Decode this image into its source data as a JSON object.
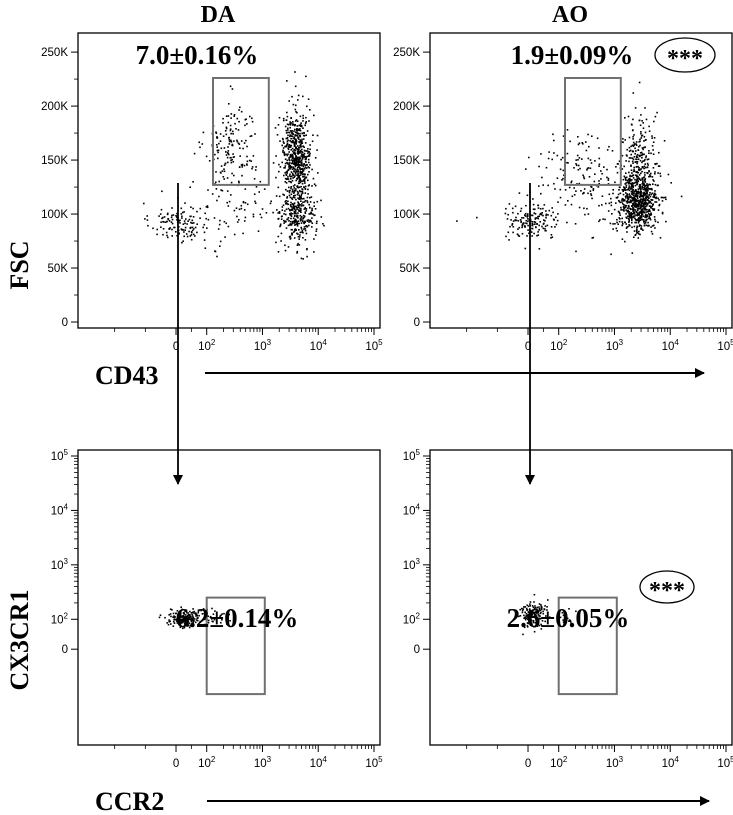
{
  "figure": {
    "column_titles": [
      "DA",
      "AO"
    ],
    "ylabel_top": "FSC",
    "xlabel_top": "CD43",
    "ylabel_bottom": "CX3CR1",
    "xlabel_bottom": "CCR2",
    "colors": {
      "ink": "#000000",
      "gate": "#707070"
    }
  },
  "chart_data": [
    {
      "type": "scatter",
      "panel": "DA CD43 vs FSC",
      "column": "DA",
      "xlabel": "CD43",
      "ylabel": "FSC",
      "x_scale": "biexponential",
      "y_scale": "linear",
      "xlim": [
        -300,
        100000
      ],
      "ylim": [
        0,
        262144
      ],
      "x_ticks": [
        "0",
        "10^2",
        "10^3",
        "10^4",
        "10^5"
      ],
      "y_ticks": [
        "0",
        "50K",
        "100K",
        "150K",
        "200K",
        "250K"
      ],
      "gate": {
        "x": [
          130,
          1300
        ],
        "y": [
          127000,
          226000
        ],
        "percent": "7.0±0.16%"
      },
      "significance": "",
      "populations": [
        {
          "x_center": 5,
          "y_center": 93000,
          "x_spread": 0.16,
          "y_spread": 9000,
          "n": 120
        },
        {
          "x_center": 280,
          "y_center": 165000,
          "x_spread": 0.15,
          "y_spread": 20000,
          "n": 150
        },
        {
          "x_center": 350,
          "y_center": 105000,
          "x_spread": 0.35,
          "y_spread": 22000,
          "n": 90
        },
        {
          "x_center": 4000,
          "y_center": 155000,
          "x_spread": 0.08,
          "y_spread": 18000,
          "n": 500
        },
        {
          "x_center": 4200,
          "y_center": 100000,
          "x_spread": 0.1,
          "y_spread": 15000,
          "n": 320
        },
        {
          "x_center": 4000,
          "y_center": 175000,
          "x_spread": 0.1,
          "y_spread": 22000,
          "n": 60
        }
      ]
    },
    {
      "type": "scatter",
      "panel": "AO CD43 vs FSC",
      "column": "AO",
      "xlabel": "CD43",
      "ylabel": "FSC",
      "x_scale": "biexponential",
      "y_scale": "linear",
      "xlim": [
        -300,
        100000
      ],
      "ylim": [
        0,
        262144
      ],
      "x_ticks": [
        "0",
        "10^2",
        "10^3",
        "10^4",
        "10^5"
      ],
      "y_ticks": [
        "0",
        "50K",
        "100K",
        "150K",
        "200K",
        "250K"
      ],
      "gate": {
        "x": [
          130,
          1300
        ],
        "y": [
          127000,
          226000
        ],
        "percent": "1.9±0.09%"
      },
      "significance": "***",
      "populations": [
        {
          "x_center": 10,
          "y_center": 93000,
          "x_spread": 0.15,
          "y_spread": 8000,
          "n": 150
        },
        {
          "x_center": 250,
          "y_center": 145000,
          "x_spread": 0.3,
          "y_spread": 17000,
          "n": 110
        },
        {
          "x_center": 300,
          "y_center": 110000,
          "x_spread": 0.35,
          "y_spread": 18000,
          "n": 60
        },
        {
          "x_center": 2500,
          "y_center": 110000,
          "x_spread": 0.12,
          "y_spread": 14000,
          "n": 650
        },
        {
          "x_center": 2800,
          "y_center": 145000,
          "x_spread": 0.1,
          "y_spread": 18000,
          "n": 200
        },
        {
          "x_center": 2700,
          "y_center": 170000,
          "x_spread": 0.12,
          "y_spread": 25000,
          "n": 40
        }
      ]
    },
    {
      "type": "scatter",
      "panel": "DA CCR2 vs CX3CR1",
      "column": "DA",
      "xlabel": "CCR2",
      "ylabel": "CX3CR1",
      "x_scale": "biexponential",
      "y_scale": "biexponential",
      "xlim": [
        -300,
        100000
      ],
      "ylim": [
        -300,
        100000
      ],
      "x_ticks": [
        "0",
        "10^2",
        "10^3",
        "10^4",
        "10^5"
      ],
      "y_ticks": [
        "0",
        "10^2",
        "10^3",
        "10^4",
        "10^5"
      ],
      "gate": {
        "x": [
          100,
          1100
        ],
        "y": [
          -150,
          250
        ],
        "percent": "6.2±0.14%"
      },
      "significance": "",
      "populations": [
        {
          "x_center": 30,
          "y_center": 110,
          "x_spread": 0.09,
          "y_spread": 0.05,
          "n": 180
        },
        {
          "x_center": 120,
          "y_center": 110,
          "x_spread": 0.08,
          "y_spread": 0.05,
          "n": 30
        }
      ]
    },
    {
      "type": "scatter",
      "panel": "AO CCR2 vs CX3CR1",
      "column": "AO",
      "xlabel": "CCR2",
      "ylabel": "CX3CR1",
      "x_scale": "biexponential",
      "y_scale": "biexponential",
      "xlim": [
        -300,
        100000
      ],
      "ylim": [
        -300,
        100000
      ],
      "x_ticks": [
        "0",
        "10^2",
        "10^3",
        "10^4",
        "10^5"
      ],
      "y_ticks": [
        "0",
        "10^2",
        "10^3",
        "10^4",
        "10^5"
      ],
      "gate": {
        "x": [
          100,
          1100
        ],
        "y": [
          -150,
          250
        ],
        "percent": "2.6±0.05%"
      },
      "significance": "***",
      "populations": [
        {
          "x_center": 15,
          "y_center": 130,
          "x_spread": 0.07,
          "y_spread": 0.08,
          "n": 160
        },
        {
          "x_center": 150,
          "y_center": 110,
          "x_spread": 0.06,
          "y_spread": 0.04,
          "n": 14
        }
      ]
    }
  ]
}
